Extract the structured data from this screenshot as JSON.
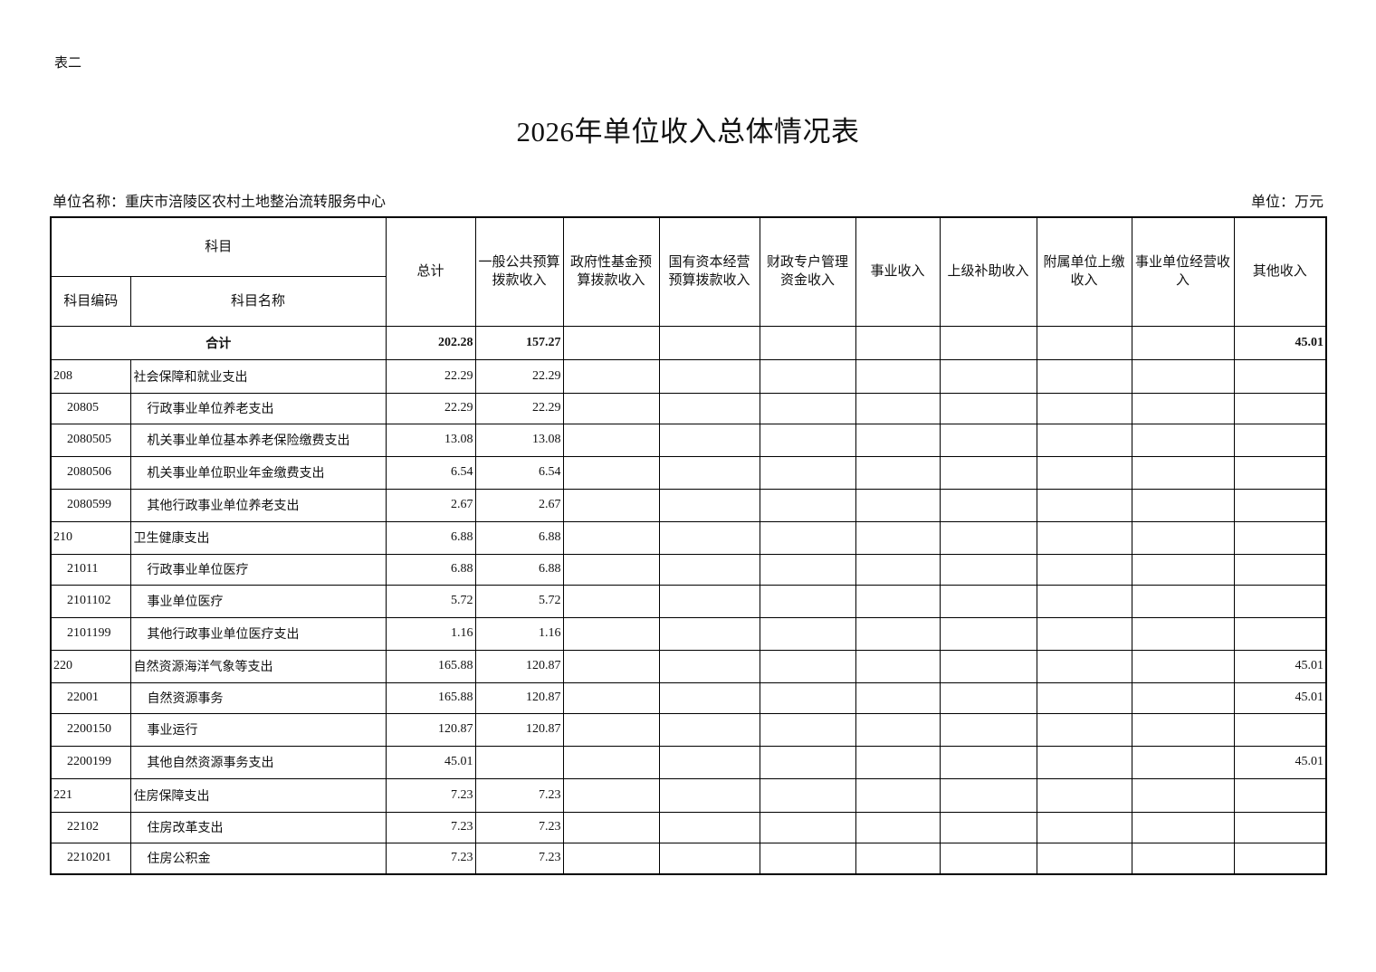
{
  "table_label": "表二",
  "title": "2026年单位收入总体情况表",
  "unit_name": "单位名称：重庆市涪陵区农村土地整治流转服务中心",
  "unit": "单位：万元",
  "headers": {
    "subject": "科目",
    "code": "科目编码",
    "name": "科目名称",
    "columns": [
      "总计",
      "一般公共预算拨款收入",
      "政府性基金预算拨款收入",
      "国有资本经营预算拨款收入",
      "财政专户管理资金收入",
      "事业收入",
      "上级补助收入",
      "附属单位上缴收入",
      "事业单位经营收入",
      "其他收入"
    ]
  },
  "total": {
    "label": "合计",
    "values": [
      "202.28",
      "157.27",
      "",
      "",
      "",
      "",
      "",
      "",
      "",
      "45.01"
    ]
  },
  "rows": [
    {
      "code": "208",
      "name": "社会保障和就业支出",
      "level": 1,
      "values": [
        "22.29",
        "22.29",
        "",
        "",
        "",
        "",
        "",
        "",
        "",
        ""
      ]
    },
    {
      "code": "20805",
      "name": "行政事业单位养老支出",
      "level": 2,
      "values": [
        "22.29",
        "22.29",
        "",
        "",
        "",
        "",
        "",
        "",
        "",
        ""
      ]
    },
    {
      "code": "2080505",
      "name": "机关事业单位基本养老保险缴费支出",
      "level": 3,
      "values": [
        "13.08",
        "13.08",
        "",
        "",
        "",
        "",
        "",
        "",
        "",
        ""
      ]
    },
    {
      "code": "2080506",
      "name": "机关事业单位职业年金缴费支出",
      "level": 3,
      "values": [
        "6.54",
        "6.54",
        "",
        "",
        "",
        "",
        "",
        "",
        "",
        ""
      ]
    },
    {
      "code": "2080599",
      "name": "其他行政事业单位养老支出",
      "level": 3,
      "values": [
        "2.67",
        "2.67",
        "",
        "",
        "",
        "",
        "",
        "",
        "",
        ""
      ]
    },
    {
      "code": "210",
      "name": "卫生健康支出",
      "level": 1,
      "values": [
        "6.88",
        "6.88",
        "",
        "",
        "",
        "",
        "",
        "",
        "",
        ""
      ]
    },
    {
      "code": "21011",
      "name": "行政事业单位医疗",
      "level": 2,
      "values": [
        "6.88",
        "6.88",
        "",
        "",
        "",
        "",
        "",
        "",
        "",
        ""
      ]
    },
    {
      "code": "2101102",
      "name": "事业单位医疗",
      "level": 3,
      "values": [
        "5.72",
        "5.72",
        "",
        "",
        "",
        "",
        "",
        "",
        "",
        ""
      ]
    },
    {
      "code": "2101199",
      "name": "其他行政事业单位医疗支出",
      "level": 3,
      "values": [
        "1.16",
        "1.16",
        "",
        "",
        "",
        "",
        "",
        "",
        "",
        ""
      ]
    },
    {
      "code": "220",
      "name": "自然资源海洋气象等支出",
      "level": 1,
      "values": [
        "165.88",
        "120.87",
        "",
        "",
        "",
        "",
        "",
        "",
        "",
        "45.01"
      ]
    },
    {
      "code": "22001",
      "name": "自然资源事务",
      "level": 2,
      "values": [
        "165.88",
        "120.87",
        "",
        "",
        "",
        "",
        "",
        "",
        "",
        "45.01"
      ]
    },
    {
      "code": "2200150",
      "name": "事业运行",
      "level": 3,
      "values": [
        "120.87",
        "120.87",
        "",
        "",
        "",
        "",
        "",
        "",
        "",
        ""
      ]
    },
    {
      "code": "2200199",
      "name": "其他自然资源事务支出",
      "level": 3,
      "values": [
        "45.01",
        "",
        "",
        "",
        "",
        "",
        "",
        "",
        "",
        "45.01"
      ]
    },
    {
      "code": "221",
      "name": "住房保障支出",
      "level": 1,
      "values": [
        "7.23",
        "7.23",
        "",
        "",
        "",
        "",
        "",
        "",
        "",
        ""
      ]
    },
    {
      "code": "22102",
      "name": "住房改革支出",
      "level": 2,
      "values": [
        "7.23",
        "7.23",
        "",
        "",
        "",
        "",
        "",
        "",
        "",
        ""
      ]
    },
    {
      "code": "2210201",
      "name": "住房公积金",
      "level": 3,
      "values": [
        "7.23",
        "7.23",
        "",
        "",
        "",
        "",
        "",
        "",
        "",
        ""
      ]
    }
  ]
}
